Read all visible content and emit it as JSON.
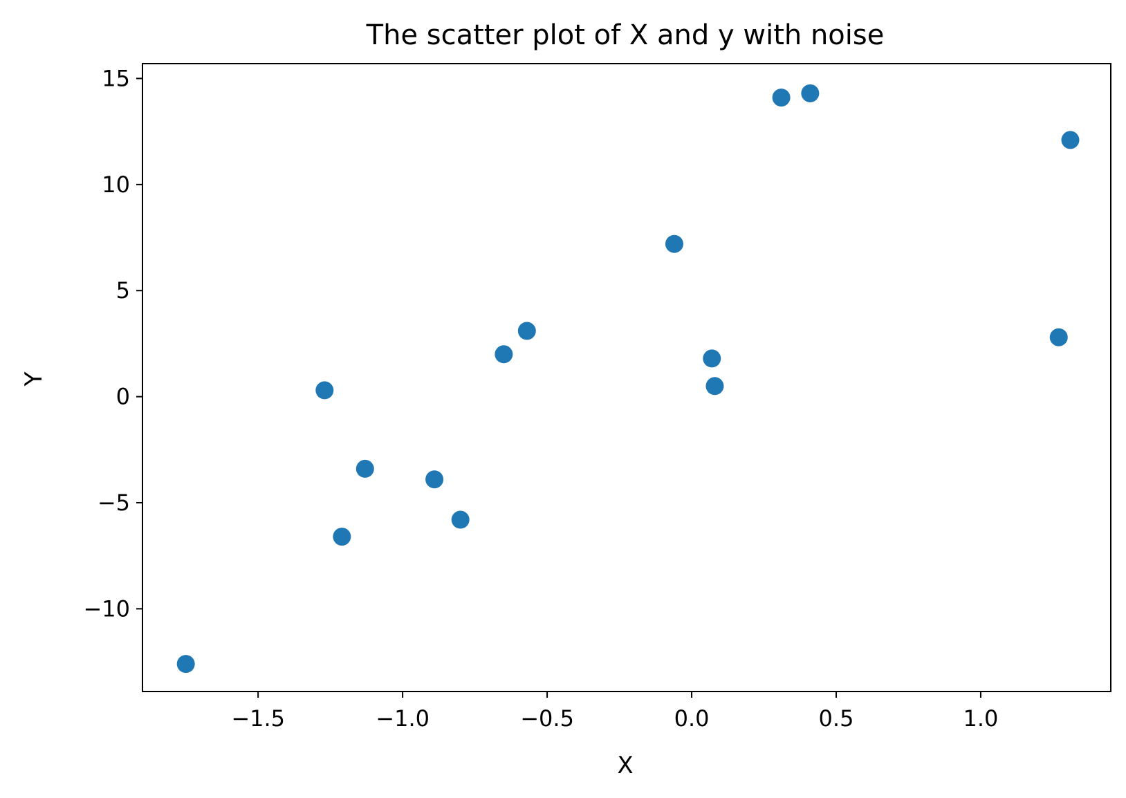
{
  "chart_data": {
    "type": "scatter",
    "title": "The scatter plot of X and y with noise",
    "xlabel": "X",
    "ylabel": "Y",
    "xlim": [
      -1.9,
      1.45
    ],
    "ylim": [
      -13.9,
      15.7
    ],
    "xticks": [
      -1.5,
      -1.0,
      -0.5,
      0.0,
      0.5,
      1.0
    ],
    "xtick_labels": [
      "−1.5",
      "−1.0",
      "−0.5",
      "0.0",
      "0.5",
      "1.0"
    ],
    "yticks": [
      -10,
      -5,
      0,
      5,
      10,
      15
    ],
    "ytick_labels": [
      "−10",
      "−5",
      "0",
      "5",
      "10",
      "15"
    ],
    "grid": false,
    "legend": "none",
    "marker_color": "#1f77b4",
    "series": [
      {
        "x": [
          -1.75,
          -1.27,
          -1.21,
          -1.13,
          -0.89,
          -0.8,
          -0.65,
          -0.57,
          -0.06,
          0.07,
          0.08,
          0.31,
          0.41,
          1.27,
          1.31
        ],
        "y": [
          -12.6,
          0.3,
          -6.6,
          -3.4,
          -3.9,
          -5.8,
          2.0,
          3.1,
          7.2,
          1.8,
          0.5,
          14.1,
          14.3,
          2.8,
          12.1
        ]
      }
    ]
  }
}
